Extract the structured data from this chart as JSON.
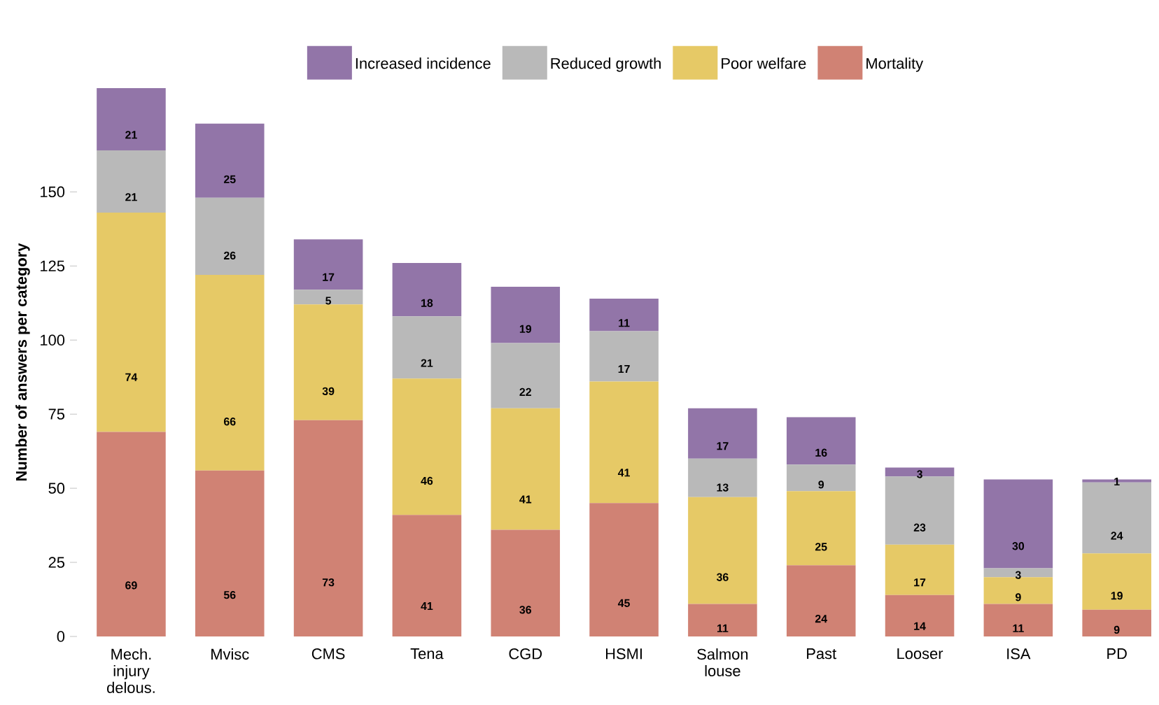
{
  "chart_data": {
    "type": "bar",
    "stacked": true,
    "ylabel": "Number of answers per category",
    "categories": [
      "Mech. injury delous.",
      "Mvisc",
      "CMS",
      "Tena",
      "CGD",
      "HSMI",
      "Salmon louse",
      "Past",
      "Looser",
      "ISA",
      "PD"
    ],
    "series": [
      {
        "name": "Mortality",
        "color": "#d08274",
        "values": [
          69,
          56,
          73,
          41,
          36,
          45,
          11,
          24,
          14,
          11,
          9
        ]
      },
      {
        "name": "Poor welfare",
        "color": "#e6c966",
        "values": [
          74,
          66,
          39,
          46,
          41,
          41,
          36,
          25,
          17,
          9,
          19
        ]
      },
      {
        "name": "Reduced growth",
        "color": "#b9b9b9",
        "values": [
          21,
          26,
          5,
          21,
          22,
          17,
          13,
          9,
          23,
          3,
          24
        ]
      },
      {
        "name": "Increased incidence",
        "color": "#9275a8",
        "values": [
          21,
          25,
          17,
          18,
          19,
          11,
          17,
          16,
          3,
          30,
          1
        ]
      }
    ],
    "ylim": [
      0,
      185
    ],
    "yticks": [
      0,
      25,
      50,
      75,
      100,
      125,
      150
    ],
    "data_labels": true,
    "legend": "top",
    "grid": false
  }
}
